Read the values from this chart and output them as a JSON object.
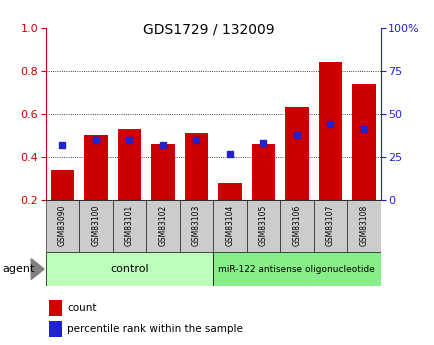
{
  "title": "GDS1729 / 132009",
  "samples": [
    "GSM83090",
    "GSM83100",
    "GSM83101",
    "GSM83102",
    "GSM83103",
    "GSM83104",
    "GSM83105",
    "GSM83106",
    "GSM83107",
    "GSM83108"
  ],
  "red_values": [
    0.34,
    0.5,
    0.53,
    0.46,
    0.51,
    0.28,
    0.46,
    0.63,
    0.84,
    0.74
  ],
  "blue_values": [
    32,
    35,
    35,
    32,
    35,
    27,
    33,
    38,
    44,
    41
  ],
  "ylim_left": [
    0.2,
    1.0
  ],
  "ylim_right": [
    0,
    100
  ],
  "yticks_left": [
    0.2,
    0.4,
    0.6,
    0.8,
    1.0
  ],
  "yticks_right": [
    0,
    25,
    50,
    75,
    100
  ],
  "ytick_labels_right": [
    "0",
    "25",
    "50",
    "75",
    "100%"
  ],
  "red_color": "#cc0000",
  "blue_color": "#2222cc",
  "bar_width": 0.7,
  "control_label": "control",
  "treatment_label": "miR-122 antisense oligonucleotide",
  "control_n": 5,
  "treatment_n": 5,
  "legend_count": "count",
  "legend_pct": "percentile rank within the sample",
  "agent_label": "agent",
  "group_bg_light": "#bbffbb",
  "group_bg_dark": "#88ee88",
  "xlabel_bg": "#cccccc",
  "title_fontsize": 10,
  "axis_label_fontsize": 7.5,
  "tick_fontsize": 8
}
